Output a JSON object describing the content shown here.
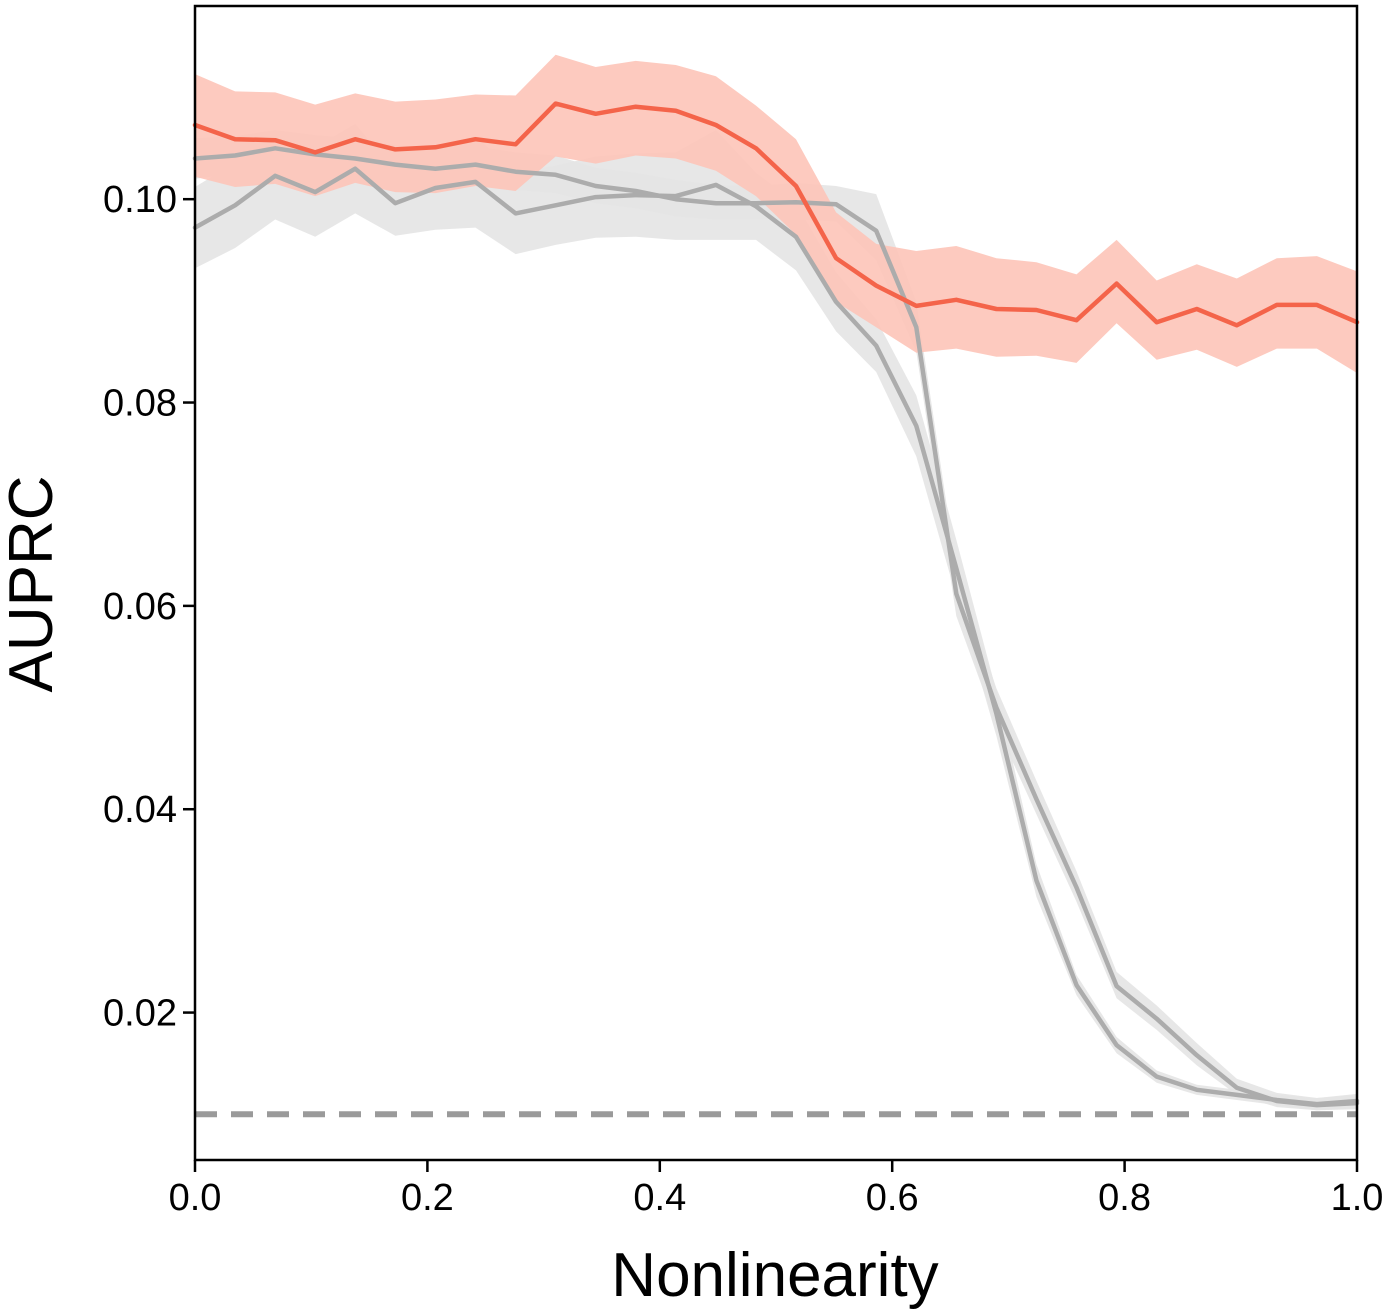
{
  "chart_data": {
    "type": "line",
    "title": "",
    "xlabel": "Nonlinearity",
    "ylabel": "AUPRC",
    "xlim": [
      0.0,
      1.0
    ],
    "ylim": [
      0.0055,
      0.119
    ],
    "xticks": [
      "0.0",
      "0.2",
      "0.4",
      "0.6",
      "0.8",
      "1.0"
    ],
    "yticks": [
      "0.02",
      "0.04",
      "0.06",
      "0.08",
      "0.10"
    ],
    "grid": false,
    "legend": "none",
    "colors": {
      "highlight": "#f4644a",
      "highlight_band": "#fdc4b8",
      "gray": "#acacac",
      "gray_band": "#e4e4e4",
      "baseline": "#9a9a9a"
    },
    "x": [
      0.0,
      0.0345,
      0.069,
      0.1034,
      0.1379,
      0.1724,
      0.2069,
      0.2414,
      0.2759,
      0.3103,
      0.3448,
      0.3793,
      0.4138,
      0.4483,
      0.4828,
      0.5172,
      0.5517,
      0.5862,
      0.6207,
      0.6552,
      0.6897,
      0.7241,
      0.7586,
      0.7931,
      0.8276,
      0.8621,
      0.8966,
      0.931,
      0.9655,
      1.0
    ],
    "series": [
      {
        "color": "#f4644a",
        "band_color": "#fdc4b8",
        "values": [
          0.1073,
          0.1059,
          0.1058,
          0.1046,
          0.1059,
          0.1049,
          0.1051,
          0.1059,
          0.1054,
          0.1094,
          0.1084,
          0.1091,
          0.1087,
          0.1073,
          0.105,
          0.1013,
          0.0942,
          0.0915,
          0.0895,
          0.0901,
          0.0892,
          0.0891,
          0.0881,
          0.0917,
          0.0879,
          0.0892,
          0.0876,
          0.0896,
          0.0896,
          0.0879
        ],
        "lower": [
          0.1022,
          0.1012,
          0.1015,
          0.1003,
          0.1016,
          0.1007,
          0.1006,
          0.1013,
          0.1008,
          0.1042,
          0.1035,
          0.1043,
          0.104,
          0.1028,
          0.1003,
          0.0965,
          0.0899,
          0.0874,
          0.0849,
          0.0853,
          0.0845,
          0.0846,
          0.0839,
          0.0878,
          0.0842,
          0.0852,
          0.0835,
          0.0853,
          0.0853,
          0.0829
        ],
        "upper": [
          0.1123,
          0.1106,
          0.1105,
          0.1093,
          0.1104,
          0.1096,
          0.1098,
          0.1103,
          0.1102,
          0.1142,
          0.113,
          0.1136,
          0.1132,
          0.1121,
          0.1092,
          0.1059,
          0.0987,
          0.0956,
          0.0949,
          0.0954,
          0.0942,
          0.0938,
          0.0926,
          0.096,
          0.092,
          0.0936,
          0.0922,
          0.0942,
          0.0944,
          0.0929
        ]
      },
      {
        "color": "#acacac",
        "band_color": "#e4e4e4",
        "values": [
          0.104,
          0.1043,
          0.105,
          0.1044,
          0.104,
          0.1034,
          0.103,
          0.1034,
          0.1027,
          0.1024,
          0.1013,
          0.1008,
          0.1,
          0.0996,
          0.0996,
          0.0997,
          0.0995,
          0.0969,
          0.0874,
          0.0612,
          0.05,
          0.041,
          0.0323,
          0.0226,
          0.0194,
          0.0158,
          0.0126,
          0.0113,
          0.0109,
          0.0111
        ],
        "lower": [
          0.102,
          0.1025,
          0.103,
          0.1025,
          0.1021,
          0.1015,
          0.1012,
          0.1016,
          0.1009,
          0.1006,
          0.0996,
          0.0991,
          0.0983,
          0.098,
          0.098,
          0.098,
          0.0978,
          0.094,
          0.085,
          0.059,
          0.0482,
          0.0395,
          0.0309,
          0.0214,
          0.0183,
          0.0148,
          0.0119,
          0.0107,
          0.0104,
          0.0105
        ],
        "upper": [
          0.106,
          0.1062,
          0.1068,
          0.1063,
          0.106,
          0.1053,
          0.1049,
          0.1052,
          0.1046,
          0.1043,
          0.1031,
          0.1026,
          0.1019,
          0.1014,
          0.1013,
          0.1016,
          0.1013,
          0.1005,
          0.0899,
          0.0636,
          0.0519,
          0.0428,
          0.0339,
          0.024,
          0.0207,
          0.017,
          0.0135,
          0.0121,
          0.0116,
          0.0119
        ]
      },
      {
        "color": "#acacac",
        "band_color": "#e4e4e4",
        "values": [
          0.0972,
          0.0994,
          0.1023,
          0.1007,
          0.103,
          0.0996,
          0.1011,
          0.1017,
          0.0986,
          0.0994,
          0.1002,
          0.1004,
          0.1003,
          0.1014,
          0.0993,
          0.0963,
          0.0899,
          0.0856,
          0.0777,
          0.0637,
          0.0494,
          0.033,
          0.0227,
          0.0168,
          0.0137,
          0.0124,
          0.0119,
          0.0114,
          0.011,
          0.0113
        ],
        "lower": [
          0.0932,
          0.0952,
          0.098,
          0.0963,
          0.0986,
          0.0964,
          0.097,
          0.0972,
          0.0946,
          0.0955,
          0.0962,
          0.0963,
          0.096,
          0.096,
          0.096,
          0.093,
          0.087,
          0.083,
          0.0747,
          0.0609,
          0.0472,
          0.0314,
          0.0217,
          0.016,
          0.0131,
          0.0119,
          0.0114,
          0.0109,
          0.0104,
          0.0106
        ],
        "upper": [
          0.1012,
          0.1036,
          0.1066,
          0.1051,
          0.1074,
          0.1028,
          0.1052,
          0.1062,
          0.1026,
          0.1033,
          0.1042,
          0.1045,
          0.1046,
          0.1068,
          0.1026,
          0.0996,
          0.0928,
          0.0882,
          0.0807,
          0.0665,
          0.0516,
          0.0346,
          0.0237,
          0.0176,
          0.0143,
          0.0129,
          0.0124,
          0.0119,
          0.0116,
          0.012
        ]
      }
    ],
    "baseline": {
      "y": 0.01,
      "style": "dashed",
      "color": "#9a9a9a"
    }
  }
}
